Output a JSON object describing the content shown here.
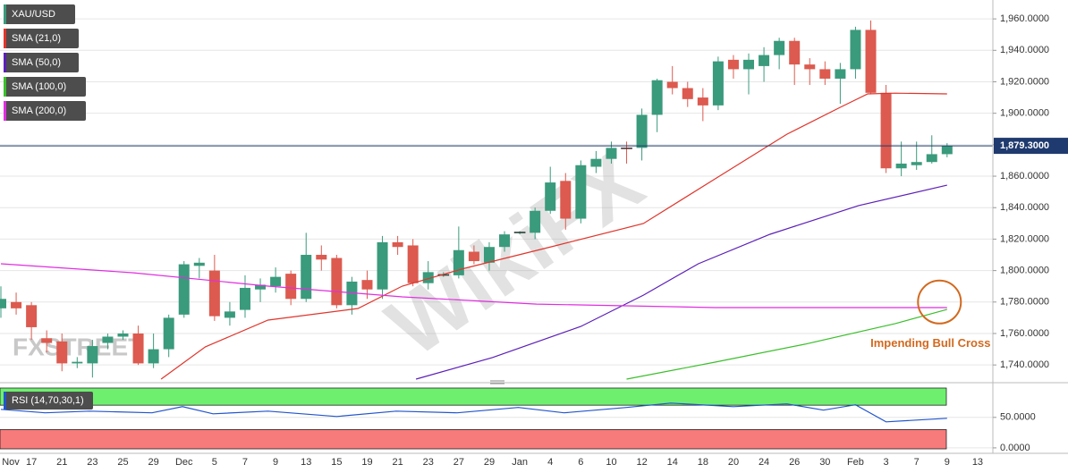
{
  "chart_data": [
    {
      "type": "candlestick",
      "name": "XAU/USD",
      "categories": [
        "Nov",
        null,
        "17",
        null,
        "21",
        null,
        "23",
        null,
        "25",
        null,
        "29",
        null,
        "Dec",
        null,
        "5",
        null,
        "7",
        null,
        "9",
        null,
        "13",
        null,
        "15",
        null,
        "19",
        null,
        "21",
        null,
        "23",
        null,
        "27",
        null,
        "29",
        null,
        "Jan",
        null,
        "4",
        null,
        "6",
        null,
        "10",
        null,
        "12",
        null,
        "14",
        null,
        "18",
        null,
        "20",
        null,
        "24",
        null,
        "26",
        null,
        "30",
        null,
        "Feb",
        null,
        "3",
        null,
        "7",
        null,
        "9",
        null,
        "13"
      ],
      "open": [
        1776,
        1780,
        1778,
        1757,
        1755,
        1741,
        1741,
        1754,
        1758,
        1760,
        1741,
        1750,
        1772,
        1803,
        1800,
        1770,
        1775,
        1788,
        1790,
        1798,
        1782,
        1810,
        1808,
        1778,
        1794,
        1788,
        1818,
        1816,
        1792,
        1797,
        1797,
        1812,
        1805,
        1815,
        1824,
        1824,
        1838,
        1857,
        1833,
        1866,
        1871,
        1878,
        1878,
        1899,
        1920,
        1916,
        1910,
        1905,
        1934,
        1928,
        1930,
        1937,
        1946,
        1931,
        1928,
        1922,
        1928,
        1953,
        1913,
        1865,
        1867,
        1869,
        1874,
        null,
        null
      ],
      "high": [
        1790,
        1786,
        1780,
        1762,
        1760,
        1745,
        1756,
        1760,
        1762,
        1765,
        1760,
        1772,
        1806,
        1808,
        1810,
        1780,
        1797,
        1795,
        1802,
        1800,
        1824,
        1816,
        1810,
        1796,
        1800,
        1822,
        1822,
        1820,
        1806,
        1799,
        1828,
        1816,
        1818,
        1825,
        1825,
        1840,
        1866,
        1862,
        1870,
        1876,
        1882,
        1882,
        1903,
        1922,
        1930,
        1920,
        1916,
        1936,
        1937,
        1938,
        1942,
        1948,
        1948,
        1935,
        1933,
        1932,
        1955,
        1959,
        1918,
        1882,
        1882,
        1886,
        1881,
        null,
        null
      ],
      "low": [
        1770,
        1772,
        1756,
        1748,
        1736,
        1738,
        1732,
        1750,
        1756,
        1740,
        1738,
        1745,
        1770,
        1795,
        1768,
        1765,
        1770,
        1780,
        1786,
        1778,
        1780,
        1800,
        1776,
        1772,
        1782,
        1782,
        1810,
        1790,
        1788,
        1796,
        1795,
        1804,
        1800,
        1812,
        1823,
        1820,
        1836,
        1826,
        1830,
        1862,
        1868,
        1868,
        1870,
        1888,
        1912,
        1904,
        1895,
        1902,
        1922,
        1912,
        1920,
        1928,
        1918,
        1918,
        1918,
        1906,
        1922,
        1912,
        1862,
        1860,
        1864,
        1868,
        1872,
        null,
        null
      ],
      "close": [
        1782,
        1776,
        1764,
        1754,
        1741,
        1742,
        1752,
        1758,
        1760,
        1741,
        1750,
        1770,
        1804,
        1805,
        1771,
        1774,
        1789,
        1791,
        1796,
        1782,
        1810,
        1807,
        1778,
        1793,
        1788,
        1818,
        1815,
        1792,
        1799,
        1797.5,
        1813,
        1806,
        1815,
        1823,
        1824.5,
        1838,
        1856,
        1833,
        1867,
        1871,
        1878,
        1877.5,
        1899,
        1921,
        1916,
        1909,
        1905,
        1933,
        1928,
        1934,
        1937,
        1946,
        1931,
        1928,
        1922,
        1928,
        1953,
        1913,
        1865,
        1868,
        1869,
        1874,
        1879.3,
        null,
        null
      ],
      "up_color": "#3a9a7c",
      "down_color": "#dc5a4f",
      "legend_color": "#3a9a7c",
      "xlim": [
        0,
        65
      ],
      "ylim": [
        1731,
        1972
      ],
      "yticks": [
        {
          "value": 1740,
          "label": "1,740.0000"
        },
        {
          "value": 1760,
          "label": "1,760.0000"
        },
        {
          "value": 1780,
          "label": "1,780.0000"
        },
        {
          "value": 1800,
          "label": "1,800.0000"
        },
        {
          "value": 1820,
          "label": "1,820.0000"
        },
        {
          "value": 1840,
          "label": "1,840.0000"
        },
        {
          "value": 1860,
          "label": "1,860.0000"
        },
        {
          "value": 1880,
          "label": "1,880.0000"
        },
        {
          "value": 1900,
          "label": "1,900.0000"
        },
        {
          "value": 1920,
          "label": "1,920.0000"
        },
        {
          "value": 1940,
          "label": "1,940.0000"
        },
        {
          "value": 1960,
          "label": "1,960.0000"
        }
      ],
      "last_price": {
        "value": 1879.3,
        "label": "1,879.3000"
      },
      "series": [
        {
          "name": "SMA (21,0)",
          "color": "#e0352b",
          "x": [
            10.5,
            13.4,
            17.5,
            23.4,
            26.3,
            30.4,
            36.3,
            42.1,
            46.8,
            51.5,
            55.0,
            56.8,
            58.6,
            62.0
          ],
          "values": [
            1731,
            1751.5,
            1768.5,
            1775.9,
            1790.1,
            1801.5,
            1815.7,
            1829.9,
            1858.3,
            1886.7,
            1903.8,
            1912.3,
            1912.8,
            1912.3
          ]
        },
        {
          "name": "SMA (50,0)",
          "color": "#5b1fb8",
          "x": [
            27.2,
            32.2,
            38.0,
            42.1,
            45.7,
            50.4,
            56.2,
            62.0
          ],
          "values": [
            1731,
            1744.7,
            1764.5,
            1784.4,
            1804.3,
            1823.1,
            1841.3,
            1854.3
          ]
        },
        {
          "name": "SMA (100,0)",
          "color": "#3bbf2b",
          "x": [
            41.0,
            46.8,
            52.7,
            58.6,
            62.0
          ],
          "values": [
            1731,
            1741.8,
            1753.2,
            1766.3,
            1775.3
          ]
        },
        {
          "name": "SMA (200,0)",
          "color": "#e02ee0",
          "x": [
            0,
            8.7,
            17.5,
            26.3,
            35.1,
            46.8,
            62.0
          ],
          "values": [
            1804.3,
            1798.6,
            1790.1,
            1783.3,
            1778.7,
            1776.5,
            1776.5
          ]
        }
      ],
      "annotation": {
        "text": "Impending Bull Cross",
        "x": 61.5,
        "y": 1780,
        "color": "#d2691e"
      },
      "watermarks": [
        "FXSTREET",
        "WikiFX"
      ],
      "grid": true
    },
    {
      "type": "line",
      "xlim": [
        0,
        65
      ],
      "ylim": [
        -6,
        101
      ],
      "yticks": [
        {
          "value": 0,
          "label": "0.0000"
        },
        {
          "value": 50,
          "label": "50.0000"
        }
      ],
      "overbought": 70,
      "oversold": 30,
      "overbought_color": "#6ef06e",
      "oversold_color": "#f77b7b",
      "series": [
        {
          "name": "RSI (14,70,30,1)",
          "color": "#2255cc",
          "x": [
            0,
            2.9,
            5.8,
            9.9,
            11.9,
            13.9,
            17.5,
            22.0,
            25.9,
            29.9,
            33.9,
            36.9,
            41.0,
            43.9,
            48.0,
            51.5,
            53.9,
            56.0,
            58.0,
            62.0
          ],
          "values": [
            63.2,
            57.4,
            60.3,
            57.4,
            67.6,
            55.9,
            60.3,
            51.5,
            60.3,
            57.4,
            66.2,
            57.4,
            66.2,
            73.5,
            67.6,
            72.1,
            61.8,
            70.6,
            42.6,
            48.5
          ]
        }
      ]
    }
  ]
}
